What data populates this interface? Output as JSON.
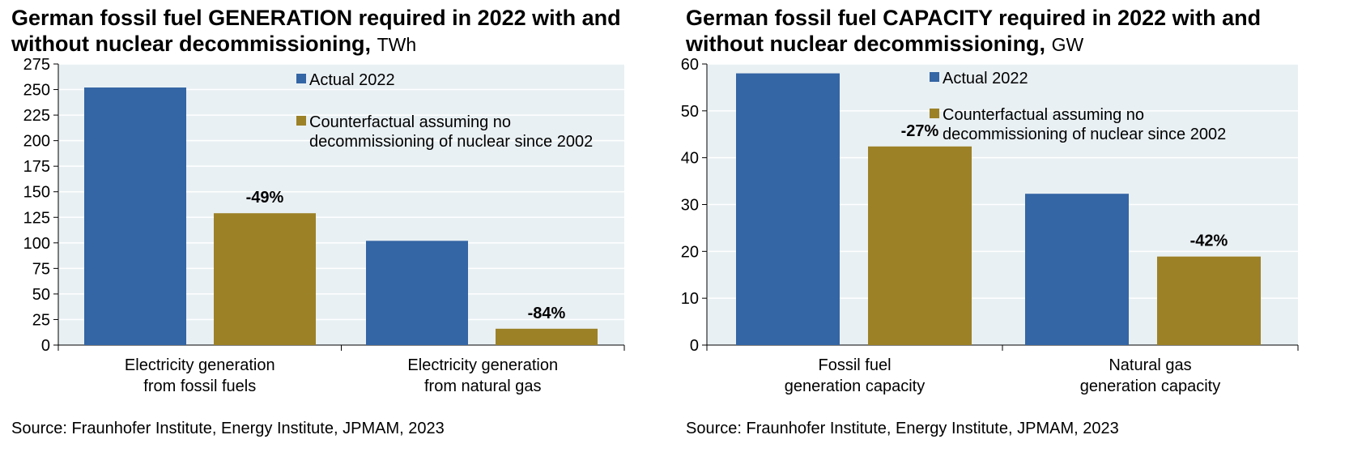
{
  "chart_data": [
    {
      "type": "bar",
      "title": "German fossil fuel GENERATION required in 2022 with and without nuclear decommissioning,",
      "unit": "TWh",
      "categories": [
        [
          "Electricity generation",
          "from fossil fuels"
        ],
        [
          "Electricity generation",
          "from natural gas"
        ]
      ],
      "series": [
        {
          "name": "Actual 2022",
          "values": [
            252,
            102
          ],
          "color": "#3465A4"
        },
        {
          "name": "Counterfactual assuming no decommissioning of nuclear since 2002",
          "name_lines": [
            "Counterfactual assuming no",
            "decommissioning of nuclear since 2002"
          ],
          "values": [
            129,
            16
          ],
          "color": "#9C8127"
        }
      ],
      "data_labels": [
        null,
        null,
        "-49%",
        "-84%"
      ],
      "ylim": [
        0,
        275
      ],
      "yticks": [
        0,
        25,
        50,
        75,
        100,
        125,
        150,
        175,
        200,
        225,
        250,
        275
      ],
      "grid": true,
      "plot_background": "#E9F0F3",
      "grid_color": "#FFFFFF",
      "legend": "top-right",
      "source": "Source: Fraunhofer Institute, Energy Institute, JPMAM, 2023"
    },
    {
      "type": "bar",
      "title": "German fossil fuel CAPACITY required in 2022 with and without nuclear decommissioning,",
      "unit": "GW",
      "categories": [
        [
          "Fossil fuel",
          "generation capacity"
        ],
        [
          "Natural gas",
          "generation capacity"
        ]
      ],
      "series": [
        {
          "name": "Actual 2022",
          "values": [
            58,
            32.3
          ],
          "color": "#3465A4"
        },
        {
          "name": "Counterfactual assuming no decommissioning of nuclear since 2002",
          "name_lines": [
            "Counterfactual assuming no",
            "decommissioning of nuclear since 2002"
          ],
          "values": [
            42.4,
            18.9
          ],
          "color": "#9C8127"
        }
      ],
      "data_labels": [
        null,
        null,
        "-27%",
        "-42%"
      ],
      "ylim": [
        0,
        60
      ],
      "yticks": [
        0,
        10,
        20,
        30,
        40,
        50,
        60
      ],
      "grid": true,
      "plot_background": "#E9F0F3",
      "grid_color": "#FFFFFF",
      "legend": "top-right",
      "source": "Source: Fraunhofer Institute, Energy Institute, JPMAM, 2023"
    }
  ]
}
